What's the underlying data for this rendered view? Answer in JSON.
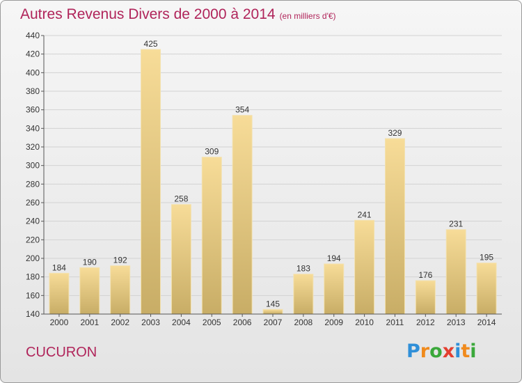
{
  "header": {
    "title": "Autres Revenus Divers de 2000 à 2014",
    "subtitle": "(en milliers d'€)"
  },
  "footer": {
    "commune": "CUCURON",
    "logo": {
      "letters": [
        "P",
        "r",
        "o",
        "x",
        "i",
        "t",
        "i"
      ],
      "colors": [
        "#2f8fd8",
        "#f08a1c",
        "#3aa83a",
        "#e43e2f",
        "#2f8fd8",
        "#f08a1c",
        "#3aa83a"
      ]
    }
  },
  "chart_data": {
    "type": "bar",
    "categories": [
      "2000",
      "2001",
      "2002",
      "2003",
      "2004",
      "2005",
      "2006",
      "2007",
      "2008",
      "2009",
      "2010",
      "2011",
      "2012",
      "2013",
      "2014"
    ],
    "values": [
      184,
      190,
      192,
      425,
      258,
      309,
      354,
      145,
      183,
      194,
      241,
      329,
      176,
      231,
      195
    ],
    "ylim": [
      140,
      440
    ],
    "yticks": [
      140,
      160,
      180,
      200,
      220,
      240,
      260,
      280,
      300,
      320,
      340,
      360,
      380,
      400,
      420,
      440
    ],
    "grid": true,
    "colors": {
      "bar_light": "#f7dc98",
      "bar_dark": "#c8ad66",
      "axis": "#555555",
      "text": "#333333"
    }
  }
}
